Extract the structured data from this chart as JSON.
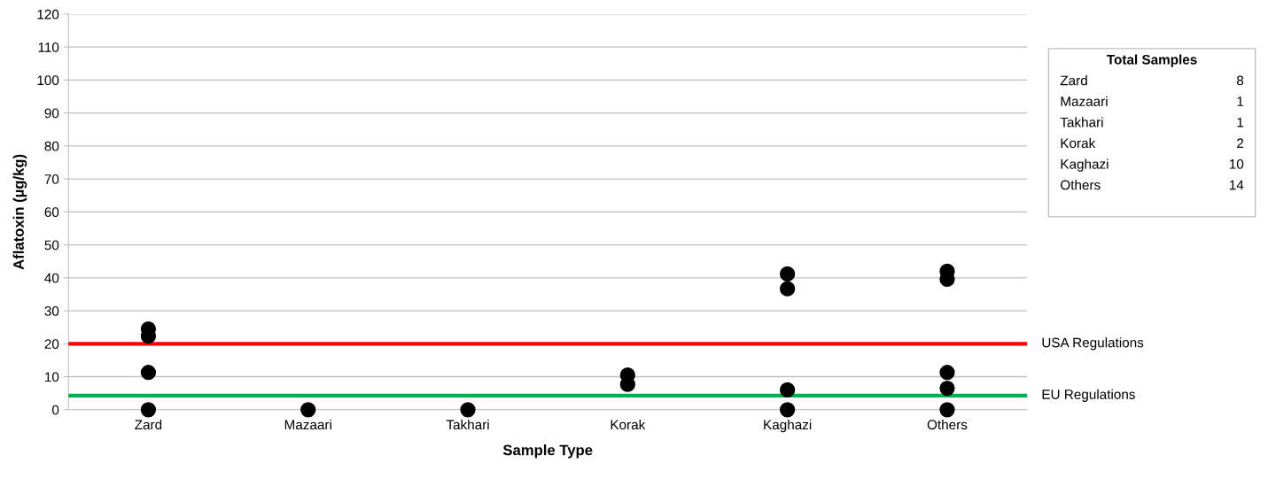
{
  "chart_data": {
    "type": "scatter",
    "xlabel": "Sample Type",
    "ylabel": "Aflatoxin (µg/kg)",
    "categories": [
      "Zard",
      "Mazaari",
      "Takhari",
      "Korak",
      "Kaghazi",
      "Others"
    ],
    "series": [
      {
        "color": "#000000",
        "x": [
          "Zard",
          "Zard",
          "Zard",
          "Zard",
          "Mazaari",
          "Takhari",
          "Korak",
          "Korak",
          "Kaghazi",
          "Kaghazi",
          "Kaghazi",
          "Kaghazi",
          "Others",
          "Others",
          "Others",
          "Others",
          "Others"
        ],
        "values": [
          24.5,
          22.3,
          11.3,
          0,
          0,
          0,
          10.5,
          7.7,
          41.2,
          36.7,
          6,
          0,
          42,
          39.6,
          11.3,
          6.5,
          0
        ]
      }
    ],
    "ylim": [
      0,
      120
    ],
    "yticks": [
      0,
      10,
      20,
      30,
      40,
      50,
      60,
      70,
      80,
      90,
      100,
      110,
      120
    ],
    "grid": "y",
    "legend": false,
    "marker": "circle",
    "ref_lines": [
      {
        "axis": "y",
        "value": 20,
        "label": "USA Regulations",
        "color": "#ff0000"
      },
      {
        "axis": "y",
        "value": 4.3,
        "label": "EU Regulations",
        "color": "#00b050"
      }
    ],
    "annotations": [
      "Total Samples",
      "Zard",
      "8",
      "Mazaari",
      "1",
      "Takhari",
      "1",
      "Korak",
      "2",
      "Kaghazi",
      "10",
      "Others",
      "14"
    ]
  }
}
